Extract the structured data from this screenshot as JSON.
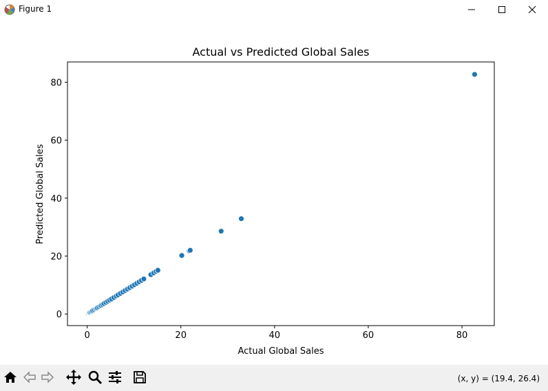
{
  "window": {
    "title": "Figure 1",
    "icon": "matplotlib-icon",
    "controls": [
      "minimize-icon",
      "maximize-icon",
      "close-icon"
    ]
  },
  "toolbar": {
    "buttons": [
      "home-icon",
      "back-icon",
      "forward-icon",
      "pan-icon",
      "zoom-icon",
      "configure-subplots-icon",
      "save-icon"
    ],
    "coords": "(x, y) = (19.4, 26.4)"
  },
  "colors": {
    "marker": "#1f77b4",
    "marker_edge": "#ffffff"
  },
  "chart_data": {
    "type": "scatter",
    "title": "Actual vs Predicted Global Sales",
    "xlabel": "Actual Global Sales",
    "ylabel": "Predicted Global Sales",
    "xlim": [
      -4.2,
      86.9
    ],
    "ylim": [
      -4.0,
      87.0
    ],
    "xticks": [
      0,
      20,
      40,
      60,
      80
    ],
    "yticks": [
      0,
      20,
      40,
      60,
      80
    ],
    "grid": false,
    "points": [
      [
        0.0,
        0.0
      ],
      [
        0.05,
        0.05
      ],
      [
        0.1,
        0.1
      ],
      [
        0.15,
        0.15
      ],
      [
        0.2,
        0.2
      ],
      [
        0.3,
        0.3
      ],
      [
        0.4,
        0.4
      ],
      [
        0.5,
        0.5
      ],
      [
        0.6,
        0.6
      ],
      [
        0.8,
        0.8
      ],
      [
        1.0,
        1.0
      ],
      [
        1.2,
        1.2
      ],
      [
        1.5,
        1.5
      ],
      [
        1.8,
        1.8
      ],
      [
        2.0,
        2.0
      ],
      [
        2.2,
        2.2
      ],
      [
        2.5,
        2.5
      ],
      [
        2.8,
        2.8
      ],
      [
        3.0,
        3.0
      ],
      [
        3.3,
        3.3
      ],
      [
        3.6,
        3.6
      ],
      [
        4.0,
        4.0
      ],
      [
        4.4,
        4.4
      ],
      [
        4.8,
        4.8
      ],
      [
        5.2,
        5.2
      ],
      [
        5.7,
        5.7
      ],
      [
        6.2,
        6.2
      ],
      [
        6.6,
        6.6
      ],
      [
        7.1,
        7.1
      ],
      [
        7.6,
        7.6
      ],
      [
        8.1,
        8.1
      ],
      [
        8.6,
        8.6
      ],
      [
        9.1,
        9.1
      ],
      [
        9.6,
        9.6
      ],
      [
        10.1,
        10.1
      ],
      [
        10.6,
        10.6
      ],
      [
        11.1,
        11.1
      ],
      [
        11.6,
        11.6
      ],
      [
        12.1,
        12.1
      ],
      [
        13.6,
        13.6
      ],
      [
        14.2,
        14.2
      ],
      [
        14.7,
        14.7
      ],
      [
        15.1,
        15.1
      ],
      [
        20.2,
        20.2
      ],
      [
        21.8,
        21.8
      ],
      [
        22.0,
        22.0
      ],
      [
        28.6,
        28.6
      ],
      [
        32.9,
        32.9
      ],
      [
        82.7,
        82.7
      ]
    ]
  }
}
